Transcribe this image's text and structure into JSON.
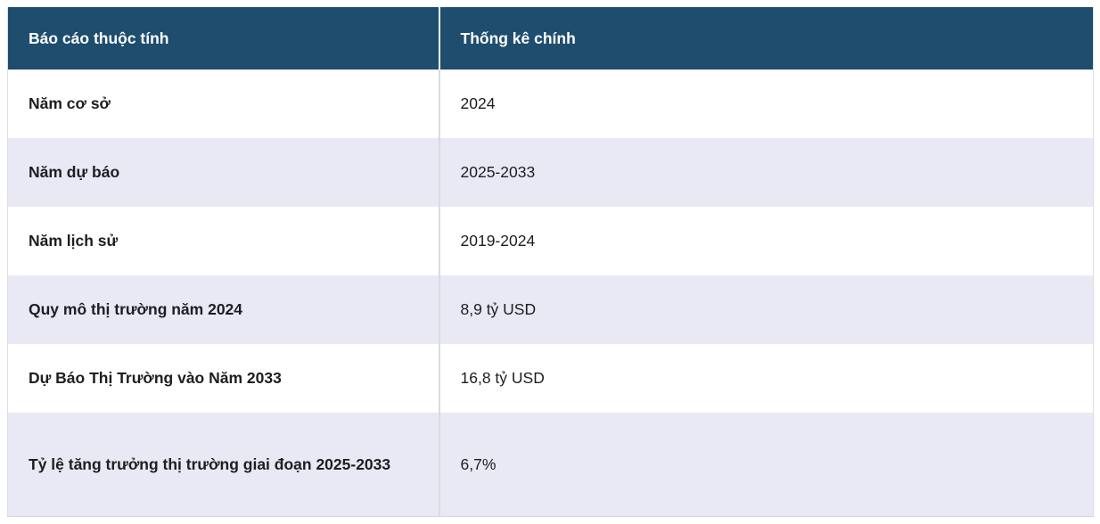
{
  "table": {
    "headers": {
      "attribute": "Báo cáo thuộc tính",
      "statistic": "Thống kê chính"
    },
    "rows": [
      {
        "attribute": "Năm cơ sở",
        "value": "2024"
      },
      {
        "attribute": "Năm dự báo",
        "value": "2025-2033"
      },
      {
        "attribute": "Năm lịch sử",
        "value": "2019-2024"
      },
      {
        "attribute": "Quy mô thị trường năm 2024",
        "value": "8,9 tỷ USD"
      },
      {
        "attribute": "Dự Báo Thị Trường vào Năm 2033",
        "value": "16,8 tỷ USD"
      },
      {
        "attribute": "Tỷ lệ tăng trưởng thị trường giai đoạn 2025-2033",
        "value": "6,7%"
      }
    ],
    "colors": {
      "header_bg": "#1e4d6e",
      "header_text": "#ffffff",
      "row_bg": "#ffffff",
      "row_alt_bg": "#e8e9f4",
      "body_text": "#1c1e21",
      "column_divider": "#d8dbde"
    }
  }
}
